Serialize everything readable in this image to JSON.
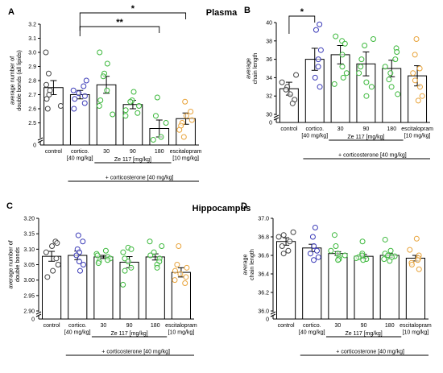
{
  "sections": {
    "plasma": "Plasma",
    "hippocampus": "Hippocampus"
  },
  "colors": {
    "control": "#444444",
    "cortico": "#3b3bb8",
    "ze": "#3cb83c",
    "escitalopram": "#e8a33a"
  },
  "chart_data": [
    {
      "panel": "A",
      "type": "bar",
      "ylabel": [
        "average number of",
        "double bonds (all lipids)"
      ],
      "ylim": [
        2.4,
        3.2
      ],
      "yticks": [
        2.5,
        2.6,
        2.7,
        2.8,
        2.9,
        3.0,
        3.1,
        3.2
      ],
      "axis_break": true,
      "categories": [
        [
          "control"
        ],
        [
          "cortico.",
          "[40 mg/kg]"
        ],
        [
          "30"
        ],
        [
          "90"
        ],
        [
          "180"
        ],
        [
          "escitalopram",
          "[10 mg/kg]"
        ]
      ],
      "values": [
        2.75,
        2.7,
        2.77,
        2.63,
        2.46,
        2.53
      ],
      "errors": [
        0.05,
        0.03,
        0.06,
        0.03,
        0.06,
        0.04
      ],
      "points": [
        [
          3.0,
          2.85,
          2.77,
          2.73,
          2.7,
          2.67,
          2.62,
          2.6
        ],
        [
          2.8,
          2.76,
          2.73,
          2.71,
          2.69,
          2.67,
          2.64,
          2.6
        ],
        [
          3.0,
          2.92,
          2.85,
          2.83,
          2.73,
          2.66,
          2.62,
          2.56
        ],
        [
          2.72,
          2.66,
          2.65,
          2.62,
          2.59,
          2.57,
          2.55
        ],
        [
          2.68,
          2.55,
          2.5,
          2.4,
          2.38
        ],
        [
          2.65,
          2.58,
          2.55,
          2.52,
          2.5,
          2.48,
          2.45,
          2.4
        ]
      ],
      "ze_label": "Ze 117 [mg/kg]",
      "treatment_label": "+ corticosterone [40 mg/kg]",
      "significance": [
        {
          "from": 1,
          "to": 5,
          "label": "*"
        },
        {
          "from": 1,
          "to": 4,
          "label": "**"
        }
      ]
    },
    {
      "panel": "B",
      "type": "bar",
      "ylabel": [
        "average",
        "chain length"
      ],
      "ylim": [
        30,
        40
      ],
      "yticks": [
        30,
        32,
        34,
        36,
        38,
        40
      ],
      "axis_break": true,
      "categories": [
        [
          "control"
        ],
        [
          "cortico.",
          "[40 mg/kg]"
        ],
        [
          "30"
        ],
        [
          "90"
        ],
        [
          "180"
        ],
        [
          "escitalopram",
          "[10 mg/kg]"
        ]
      ],
      "values": [
        32.8,
        36.0,
        36.5,
        35.5,
        35.0,
        34.2
      ],
      "errors": [
        0.7,
        1.2,
        1.0,
        1.3,
        0.9,
        1.1
      ],
      "points": [
        [
          34.3,
          33.5,
          33.0,
          32.7,
          32.2,
          31.6,
          31.2
        ],
        [
          39.8,
          39.2,
          37.0,
          36.0,
          35.2,
          34.0,
          33.0
        ],
        [
          38.5,
          38.0,
          37.7,
          36.5,
          35.2,
          34.5,
          34.0,
          33.3
        ],
        [
          38.2,
          37.5,
          36.0,
          35.2,
          34.5,
          33.5,
          33.0,
          32.0
        ],
        [
          37.2,
          36.8,
          36.0,
          35.2,
          34.5,
          33.8,
          33.0,
          32.2
        ],
        [
          38.2,
          36.5,
          35.0,
          34.5,
          33.7,
          33.0,
          32.0,
          31.5
        ]
      ],
      "ze_label": "Ze 117 [mg/kg]",
      "treatment_label": "+ corticosterone [40 mg/kg]",
      "significance": [
        {
          "from": 0,
          "to": 1,
          "label": "*"
        }
      ]
    },
    {
      "panel": "C",
      "type": "bar",
      "ylabel": [
        "average number of",
        "double bonds"
      ],
      "ylim": [
        2.9,
        3.2
      ],
      "yticks": [
        2.9,
        2.95,
        3.0,
        3.05,
        3.1,
        3.15,
        3.2
      ],
      "axis_break": true,
      "categories": [
        [
          "control"
        ],
        [
          "cortico.",
          "[40 mg/kg]"
        ],
        [
          "30"
        ],
        [
          "90"
        ],
        [
          "180"
        ],
        [
          "escitalopram",
          "[10 mg/kg]"
        ]
      ],
      "values": [
        3.077,
        3.08,
        3.075,
        3.058,
        3.075,
        3.025
      ],
      "errors": [
        0.016,
        0.014,
        0.005,
        0.018,
        0.01,
        0.015
      ],
      "points": [
        [
          3.125,
          3.12,
          3.11,
          3.09,
          3.07,
          3.05,
          3.03,
          3.01
        ],
        [
          3.145,
          3.125,
          3.1,
          3.09,
          3.08,
          3.06,
          3.05,
          3.03
        ],
        [
          3.095,
          3.085,
          3.08,
          3.075,
          3.07,
          3.065,
          3.06,
          3.055
        ],
        [
          3.105,
          3.1,
          3.09,
          3.07,
          3.06,
          3.04,
          3.03,
          2.985
        ],
        [
          3.125,
          3.11,
          3.09,
          3.08,
          3.07,
          3.06,
          3.05,
          3.04
        ],
        [
          3.11,
          3.05,
          3.04,
          3.03,
          3.02,
          3.01,
          3.0,
          2.99
        ]
      ],
      "ze_label": "Ze 117 [mg/kg]",
      "treatment_label": "+ corticosterone [40 mg/kg]",
      "significance": []
    },
    {
      "panel": "D",
      "type": "bar",
      "ylabel": [
        "average",
        "chain length"
      ],
      "ylim": [
        36.0,
        37.0
      ],
      "yticks": [
        36.0,
        36.2,
        36.4,
        36.6,
        36.8,
        37.0
      ],
      "axis_break": true,
      "categories": [
        [
          "control"
        ],
        [
          "cortico.",
          "[40 mg/kg]"
        ],
        [
          "30"
        ],
        [
          "90"
        ],
        [
          "180"
        ],
        [
          "escitalopram",
          "[10 mg/kg]"
        ]
      ],
      "values": [
        36.75,
        36.68,
        36.62,
        36.59,
        36.6,
        36.57
      ],
      "errors": [
        0.04,
        0.04,
        0.02,
        0.02,
        0.02,
        0.03
      ],
      "points": [
        [
          36.85,
          36.82,
          36.8,
          36.75,
          36.7,
          36.65,
          36.62
        ],
        [
          36.9,
          36.8,
          36.7,
          36.65,
          36.62,
          36.58,
          36.55
        ],
        [
          36.82,
          36.7,
          36.65,
          36.62,
          36.6,
          36.58,
          36.56,
          36.55
        ],
        [
          36.75,
          36.62,
          36.6,
          36.58,
          36.57,
          36.56,
          36.55
        ],
        [
          36.77,
          36.65,
          36.62,
          36.6,
          36.59,
          36.58,
          36.56,
          36.54
        ],
        [
          36.78,
          36.66,
          36.6,
          36.57,
          36.55,
          36.52,
          36.5,
          36.45
        ]
      ],
      "ze_label": "Ze 117 [mg/kg]",
      "treatment_label": "+ corticosterone [40 mg/kg]",
      "significance": []
    }
  ]
}
